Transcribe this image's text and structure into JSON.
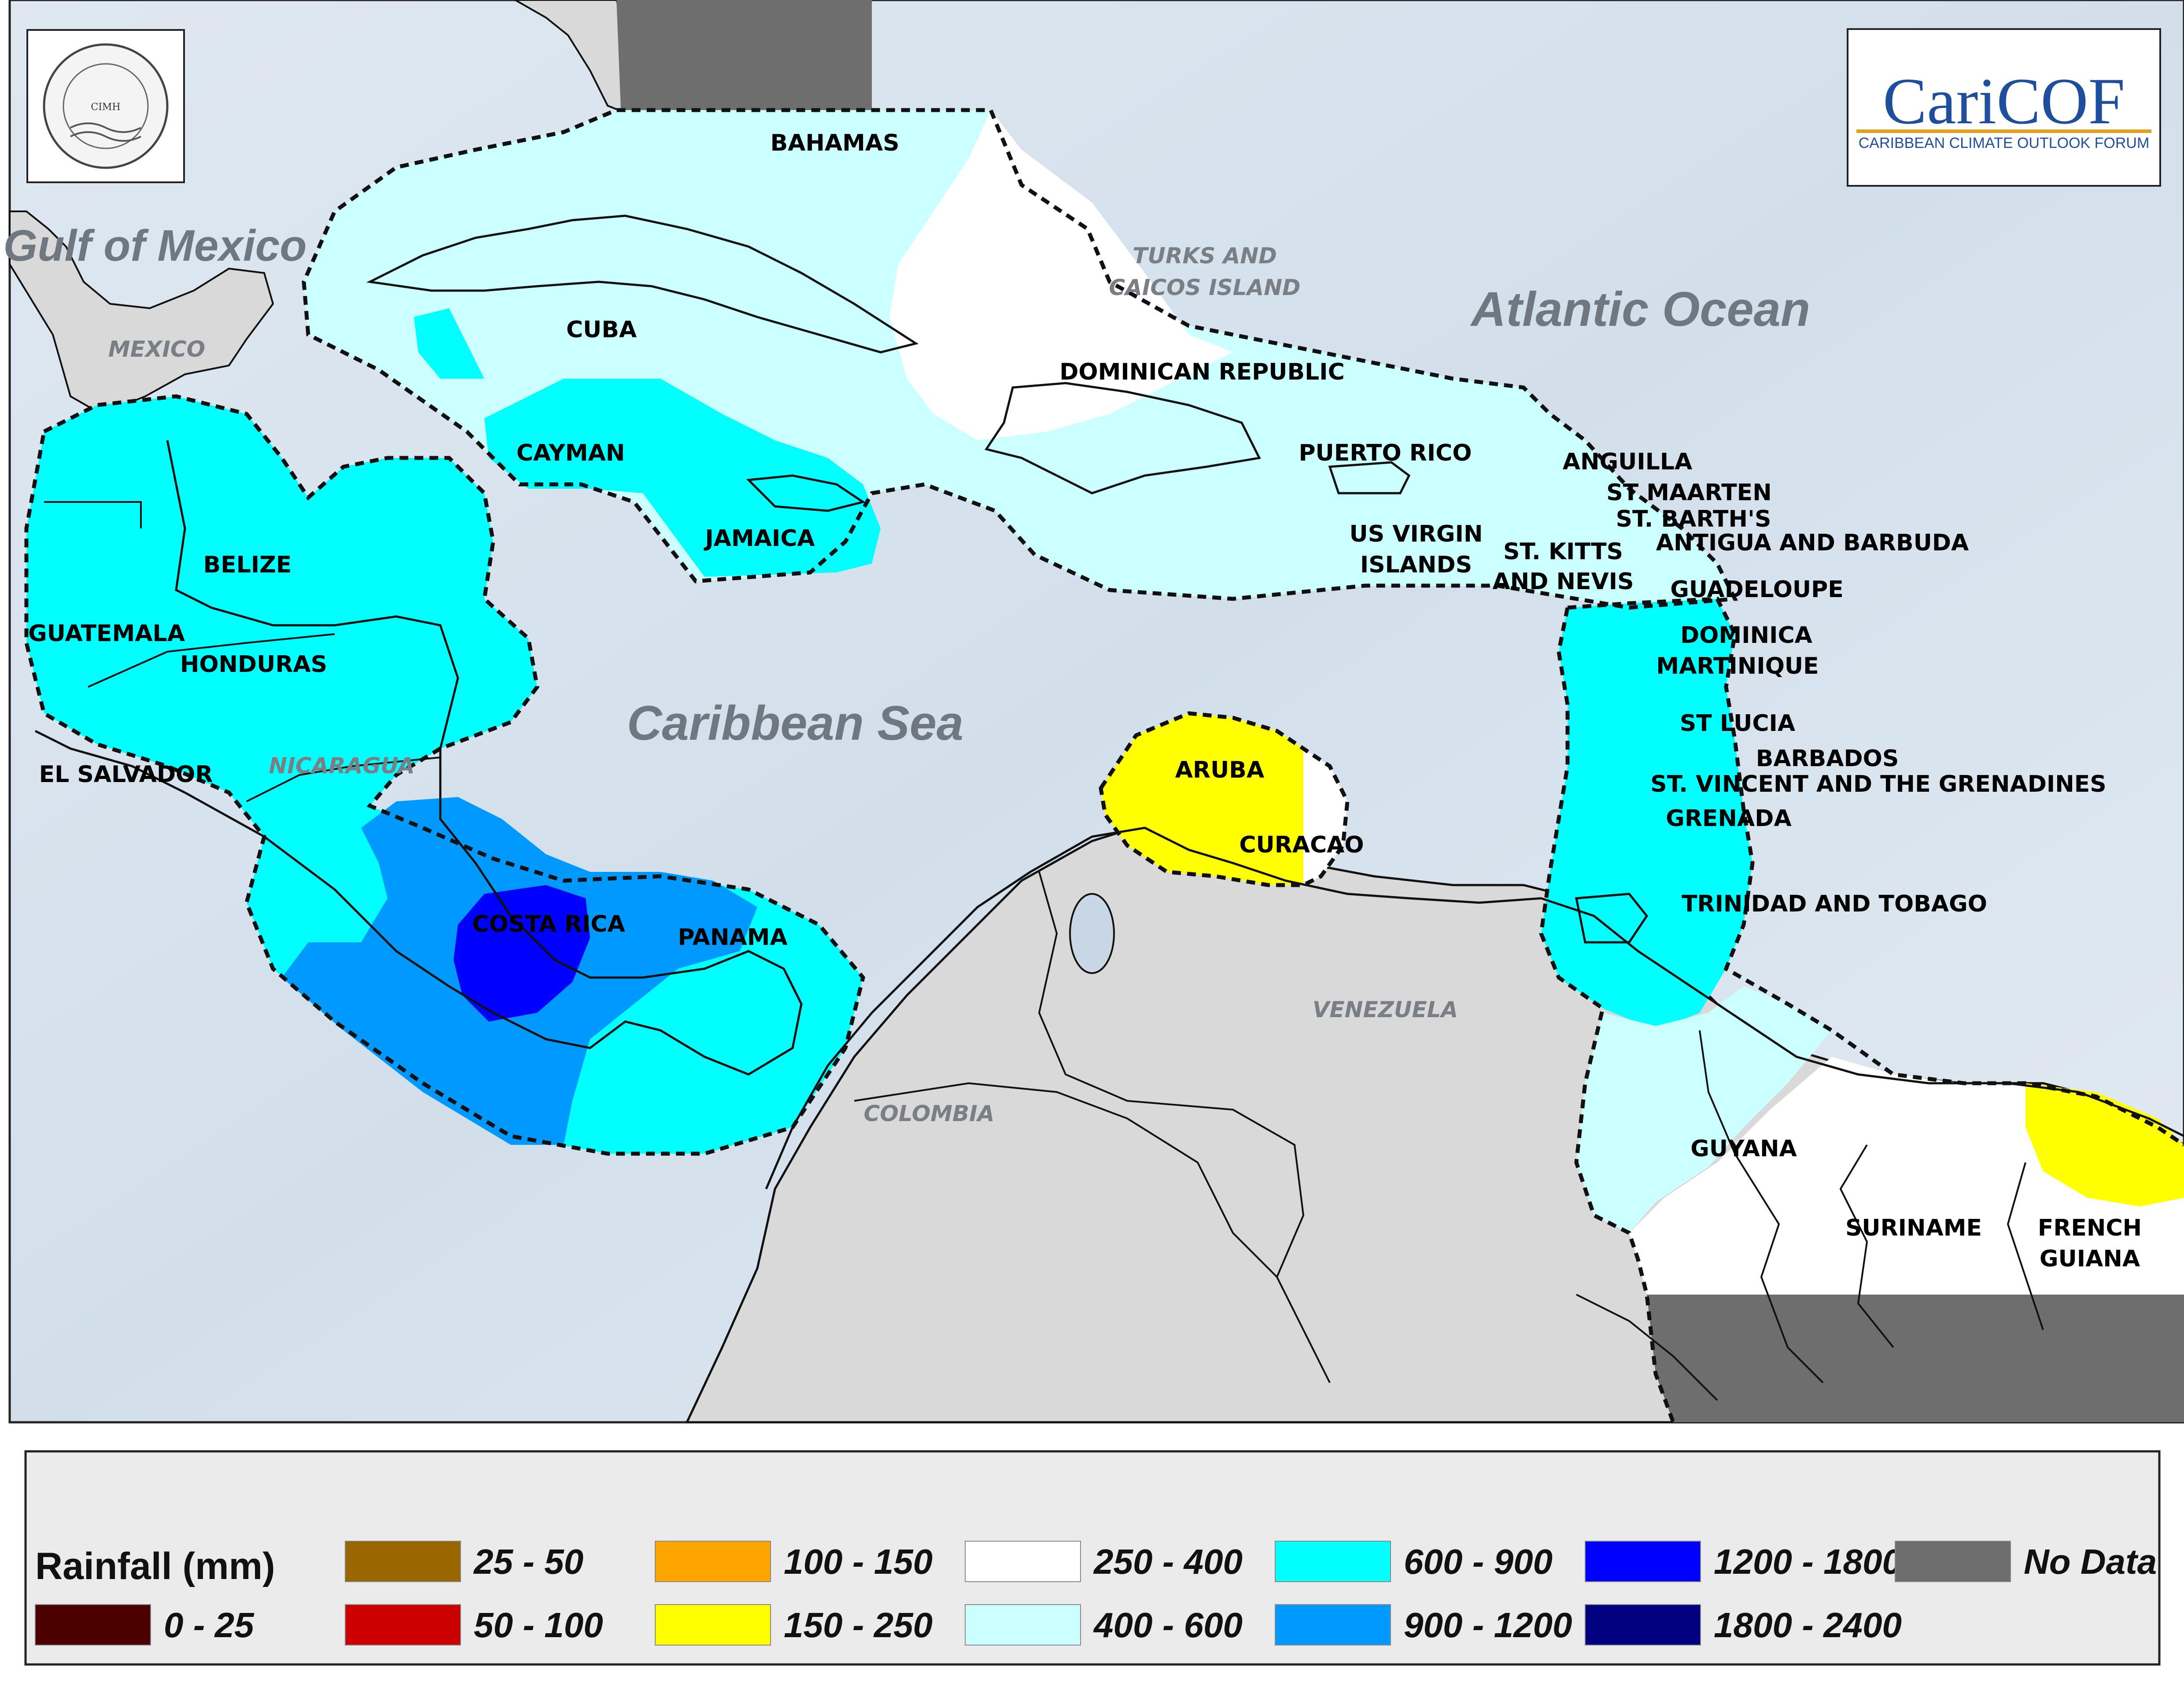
{
  "logos": {
    "cimh_text": "Caribbean Institute for Meteorology and Hydrology",
    "cimh_abbr": "CIMH",
    "caricof_title": "CariCOF",
    "caricof_subtitle": "CARIBBEAN CLIMATE OUTLOOK FORUM"
  },
  "water_labels": {
    "gulf": "Gulf of Mexico",
    "atlantic": "Atlantic Ocean",
    "caribbean": "Caribbean Sea"
  },
  "land_labels": {
    "mexico": "MEXICO",
    "nicaragua": "NICARAGUA",
    "venezuela": "VENEZUELA",
    "colombia": "COLOMBIA",
    "turks1": "TURKS AND",
    "turks2": "CAICOS ISLAND"
  },
  "country_labels": {
    "bahamas": "BAHAMAS",
    "cuba": "CUBA",
    "cayman": "CAYMAN",
    "jamaica": "JAMAICA",
    "dominican_republic": "DOMINICAN REPUBLIC",
    "puerto_rico": "PUERTO RICO",
    "usvi1": "US VIRGIN",
    "usvi2": "ISLANDS",
    "stkitts1": "ST. KITTS",
    "stkitts2": "AND NEVIS",
    "anguilla": "ANGUILLA",
    "st_maarten": "ST MAARTEN",
    "st_barths": "ST. BARTH'S",
    "antigua": "ANTIGUA AND BARBUDA",
    "guadeloupe": "GUADELOUPE",
    "dominica": "DOMINICA",
    "martinique": "MARTINIQUE",
    "st_lucia": "ST LUCIA",
    "barbados": "BARBADOS",
    "st_vincent": "ST. VINCENT AND THE GRENADINES",
    "grenada": "GRENADA",
    "trinidad": "TRINIDAD AND TOBAGO",
    "aruba": "ARUBA",
    "curacao": "CURACAO",
    "belize": "BELIZE",
    "guatemala": "GUATEMALA",
    "honduras": "HONDURAS",
    "el_salvador": "EL SALVADOR",
    "costa_rica": "COSTA RICA",
    "panama": "PANAMA",
    "guyana": "GUYANA",
    "suriname": "SURINAME",
    "french_guiana1": "FRENCH",
    "french_guiana2": "GUIANA"
  },
  "legend": {
    "title": "Rainfall (mm)",
    "items": [
      {
        "label": "0 - 25",
        "color": "#4d0000"
      },
      {
        "label": "25 - 50",
        "color": "#996600"
      },
      {
        "label": "50 - 100",
        "color": "#cc0000"
      },
      {
        "label": "100 - 150",
        "color": "#ffa500"
      },
      {
        "label": "150 - 250",
        "color": "#ffff00"
      },
      {
        "label": "250 - 400",
        "color": "#ffffff"
      },
      {
        "label": "400 - 600",
        "color": "#ccffff"
      },
      {
        "label": "600 - 900",
        "color": "#00ffff"
      },
      {
        "label": "900 - 1200",
        "color": "#0099ff"
      },
      {
        "label": "1200 - 1800",
        "color": "#0000ff"
      },
      {
        "label": "1800 - 2400",
        "color": "#000080"
      },
      {
        "label": "No Data",
        "color": "#6e6e6e"
      }
    ]
  },
  "colors": {
    "ocean": "#d8e4ef",
    "land": "#d9d9d9",
    "legend_bg": "#ebebeb"
  }
}
